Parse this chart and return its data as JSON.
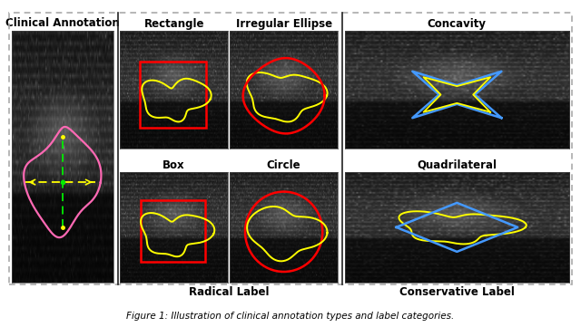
{
  "background_color": "#ffffff",
  "border_color": "#999999",
  "panel_labels": {
    "clinical": "Clinical Annotation",
    "rectangle": "Rectangle",
    "irregular_ellipse": "Irregular Ellipse",
    "box": "Box",
    "circle": "Circle",
    "concavity": "Concavity",
    "quadrilateral": "Quadrilateral",
    "radical": "Radical Label",
    "conservative": "Conservative Label"
  },
  "label_fontsize": 8.5,
  "caption_fontsize": 7.5,
  "caption": "Figure 1: Illustration of clinical annotation types and label categories."
}
